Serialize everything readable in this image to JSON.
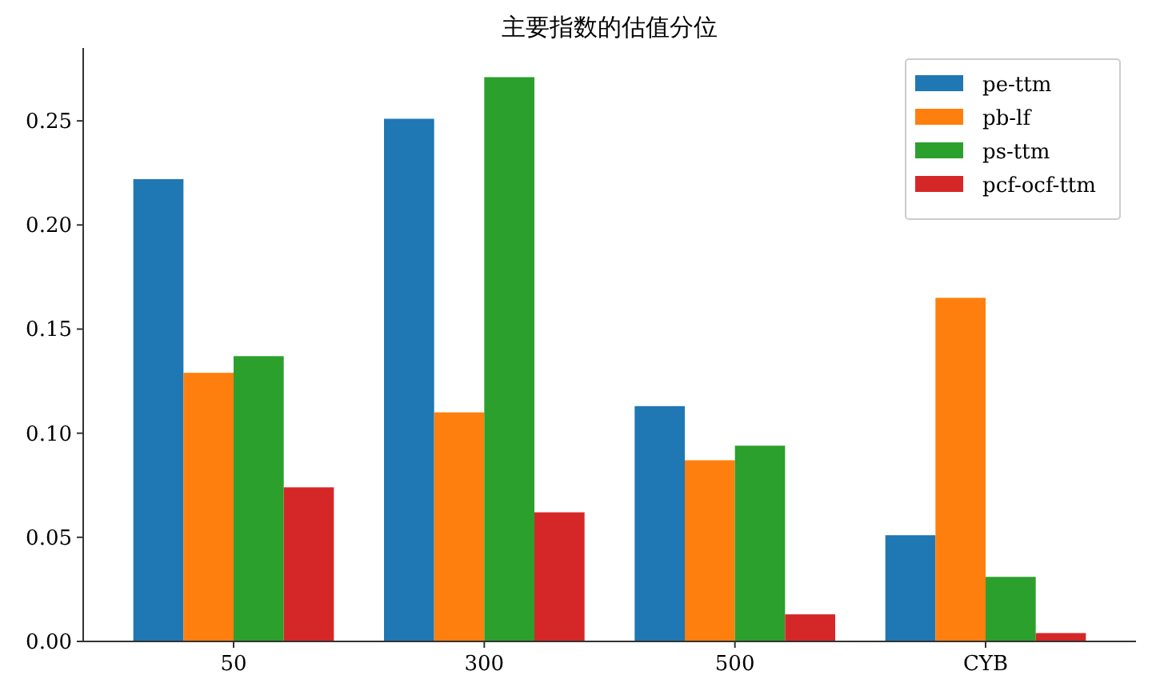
{
  "chart_data": {
    "type": "bar",
    "title": "主要指数的估值分位",
    "categories": [
      "50",
      "300",
      "500",
      "CYB"
    ],
    "series": [
      {
        "name": "pe-ttm",
        "color": "#1f77b4",
        "values": [
          0.222,
          0.251,
          0.113,
          0.051
        ]
      },
      {
        "name": "pb-lf",
        "color": "#ff7f0e",
        "values": [
          0.129,
          0.11,
          0.087,
          0.165
        ]
      },
      {
        "name": "ps-ttm",
        "color": "#2ca02c",
        "values": [
          0.137,
          0.271,
          0.094,
          0.031
        ]
      },
      {
        "name": "pcf-ocf-ttm",
        "color": "#d62728",
        "values": [
          0.074,
          0.062,
          0.013,
          0.004
        ]
      }
    ],
    "ylim": [
      0,
      0.285
    ],
    "yticks": [
      {
        "value": 0,
        "label": "0.00"
      },
      {
        "value": 0.05,
        "label": "0.05"
      },
      {
        "value": 0.1,
        "label": "0.10"
      },
      {
        "value": 0.15,
        "label": "0.15"
      },
      {
        "value": 0.2,
        "label": "0.20"
      },
      {
        "value": 0.25,
        "label": "0.25"
      }
    ],
    "legend": "top right",
    "grid": false
  }
}
